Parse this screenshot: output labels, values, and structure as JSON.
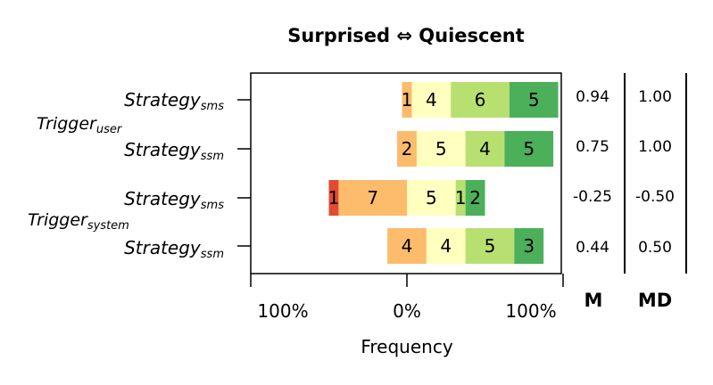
{
  "chart_data": {
    "type": "bar",
    "title": "Surprised ⇔ Quiescent",
    "xlabel": "Frequency",
    "x_tick_labels": [
      "100%",
      "0%",
      "100%"
    ],
    "groups": [
      {
        "label": "Trigger",
        "sub": "user"
      },
      {
        "label": "Trigger",
        "sub": "system"
      }
    ],
    "rows": [
      {
        "label": "Strategy",
        "sub": "sms",
        "counts": [
          0,
          0,
          1,
          4,
          6,
          5
        ],
        "M": "0.94",
        "MD": "1.00"
      },
      {
        "label": "Strategy",
        "sub": "ssm",
        "counts": [
          0,
          0,
          2,
          5,
          4,
          5
        ],
        "M": "0.75",
        "MD": "1.00"
      },
      {
        "label": "Strategy",
        "sub": "sms",
        "counts": [
          1,
          7,
          0,
          5,
          1,
          2
        ],
        "M": "-0.25",
        "MD": "-0.50"
      },
      {
        "label": "Strategy",
        "sub": "ssm",
        "counts": [
          0,
          0,
          4,
          4,
          5,
          3
        ],
        "M": "0.44",
        "MD": "0.50"
      }
    ],
    "stat_headers": [
      "M",
      "MD"
    ],
    "colors": [
      "#e34a33",
      "#fdbb6c",
      "#fdbb6c",
      "#ffffc0",
      "#b8e070",
      "#4cb05a"
    ]
  }
}
